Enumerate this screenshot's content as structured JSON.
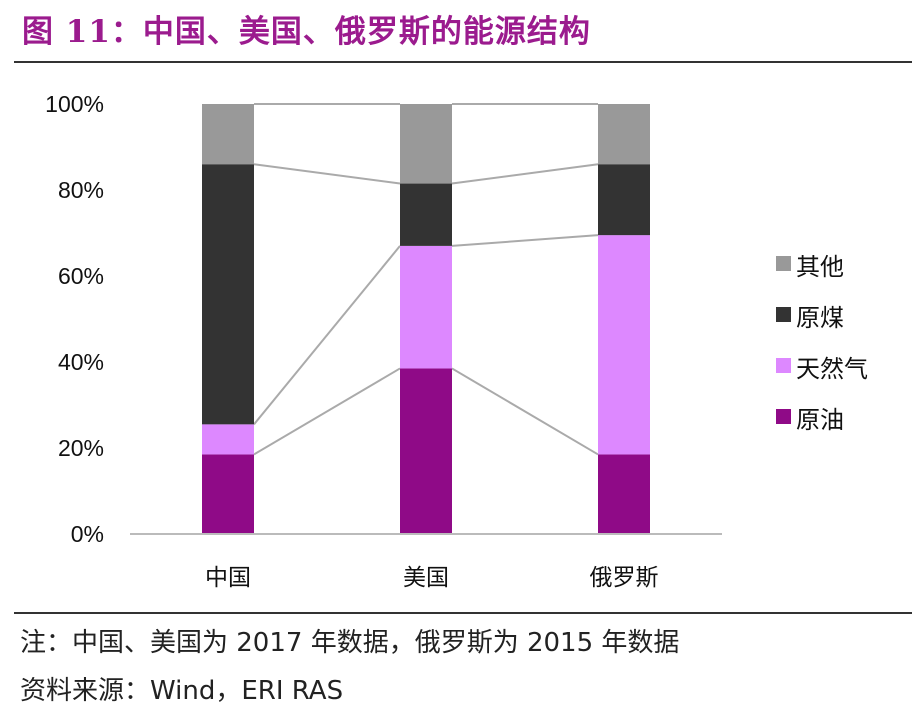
{
  "header": {
    "title": "图 11：中国、美国、俄罗斯的能源结构"
  },
  "footer": {
    "note": "注：中国、美国为 2017 年数据，俄罗斯为 2015 年数据",
    "source": "资料来源：Wind，ERI RAS"
  },
  "colors": {
    "原油": "#8f0a87",
    "天然气": "#dd88ff",
    "原煤": "#333333",
    "其他": "#999999",
    "connector": "#aaaaaa",
    "axis": "#bbbbbb"
  },
  "chart_data": {
    "type": "bar",
    "stacked": true,
    "percent": true,
    "categories": [
      "中国",
      "美国",
      "俄罗斯"
    ],
    "series": [
      {
        "name": "原油",
        "values": [
          18.5,
          38.5,
          18.5
        ]
      },
      {
        "name": "天然气",
        "values": [
          7,
          28.5,
          51
        ]
      },
      {
        "name": "原煤",
        "values": [
          60.5,
          14.5,
          16.5
        ]
      },
      {
        "name": "其他",
        "values": [
          14,
          18.5,
          14
        ]
      }
    ],
    "legend_order": [
      "其他",
      "原煤",
      "天然气",
      "原油"
    ],
    "yticks": [
      "0%",
      "20%",
      "40%",
      "60%",
      "80%",
      "100%"
    ],
    "ylim": [
      0,
      100
    ],
    "series_lines": true,
    "legend_position": "right",
    "grid": false
  }
}
